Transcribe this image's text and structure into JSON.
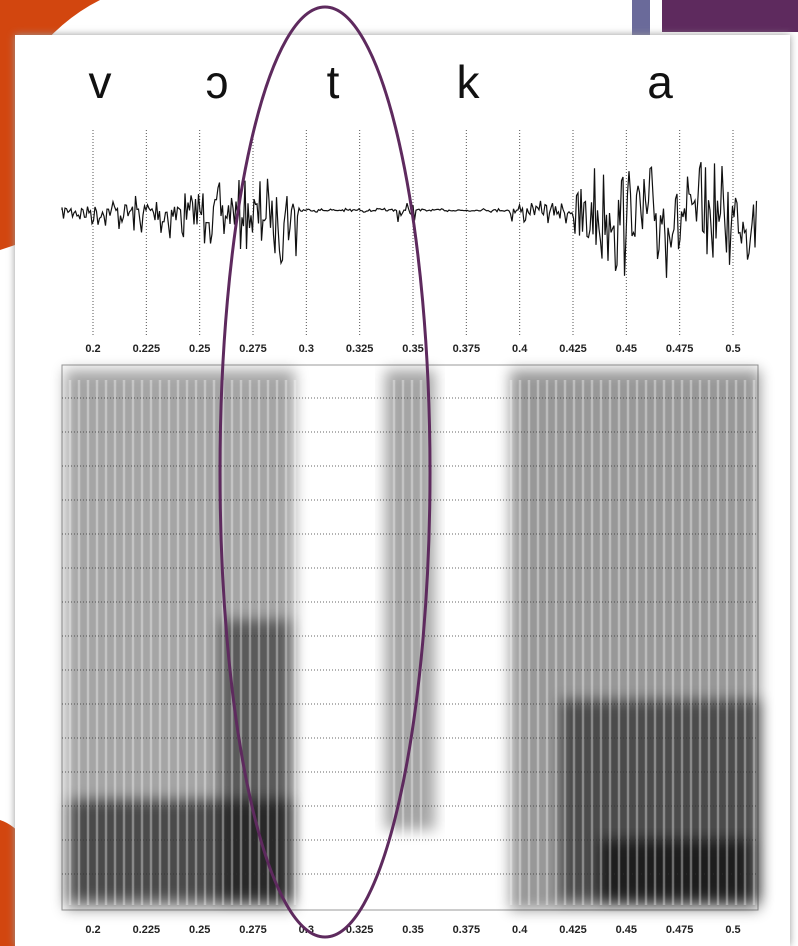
{
  "figure": {
    "segments": [
      "v",
      "ɔ",
      "t",
      "k",
      "a"
    ],
    "time_ticks": [
      0.2,
      0.225,
      0.25,
      0.275,
      0.3,
      0.325,
      0.35,
      0.375,
      0.4,
      0.425,
      0.45,
      0.475,
      0.5
    ]
  }
}
